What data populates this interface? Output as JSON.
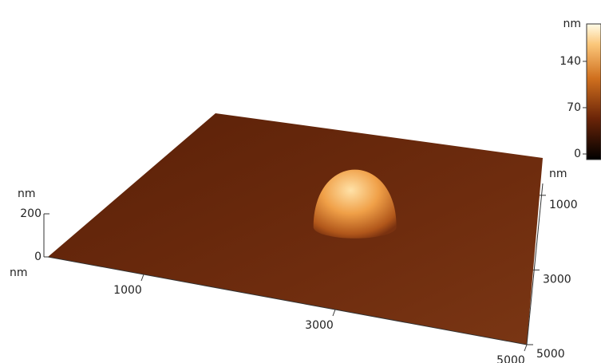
{
  "chart_data": {
    "type": "surface",
    "x_label": "nm",
    "y_label": "nm",
    "z_label": "nm",
    "xlim": [
      0,
      5000
    ],
    "xticks": [
      1000,
      3000,
      5000
    ],
    "ylim": [
      0,
      5000
    ],
    "yticks": [
      1000,
      3000,
      5000
    ],
    "zlim": [
      0,
      200
    ],
    "zticks": [
      0,
      200
    ],
    "peak": {
      "x": 2800,
      "y": 2650,
      "z": 185
    },
    "colorbar": {
      "label": "nm",
      "lim": [
        0,
        205
      ],
      "ticks": [
        0,
        70,
        140
      ]
    }
  }
}
